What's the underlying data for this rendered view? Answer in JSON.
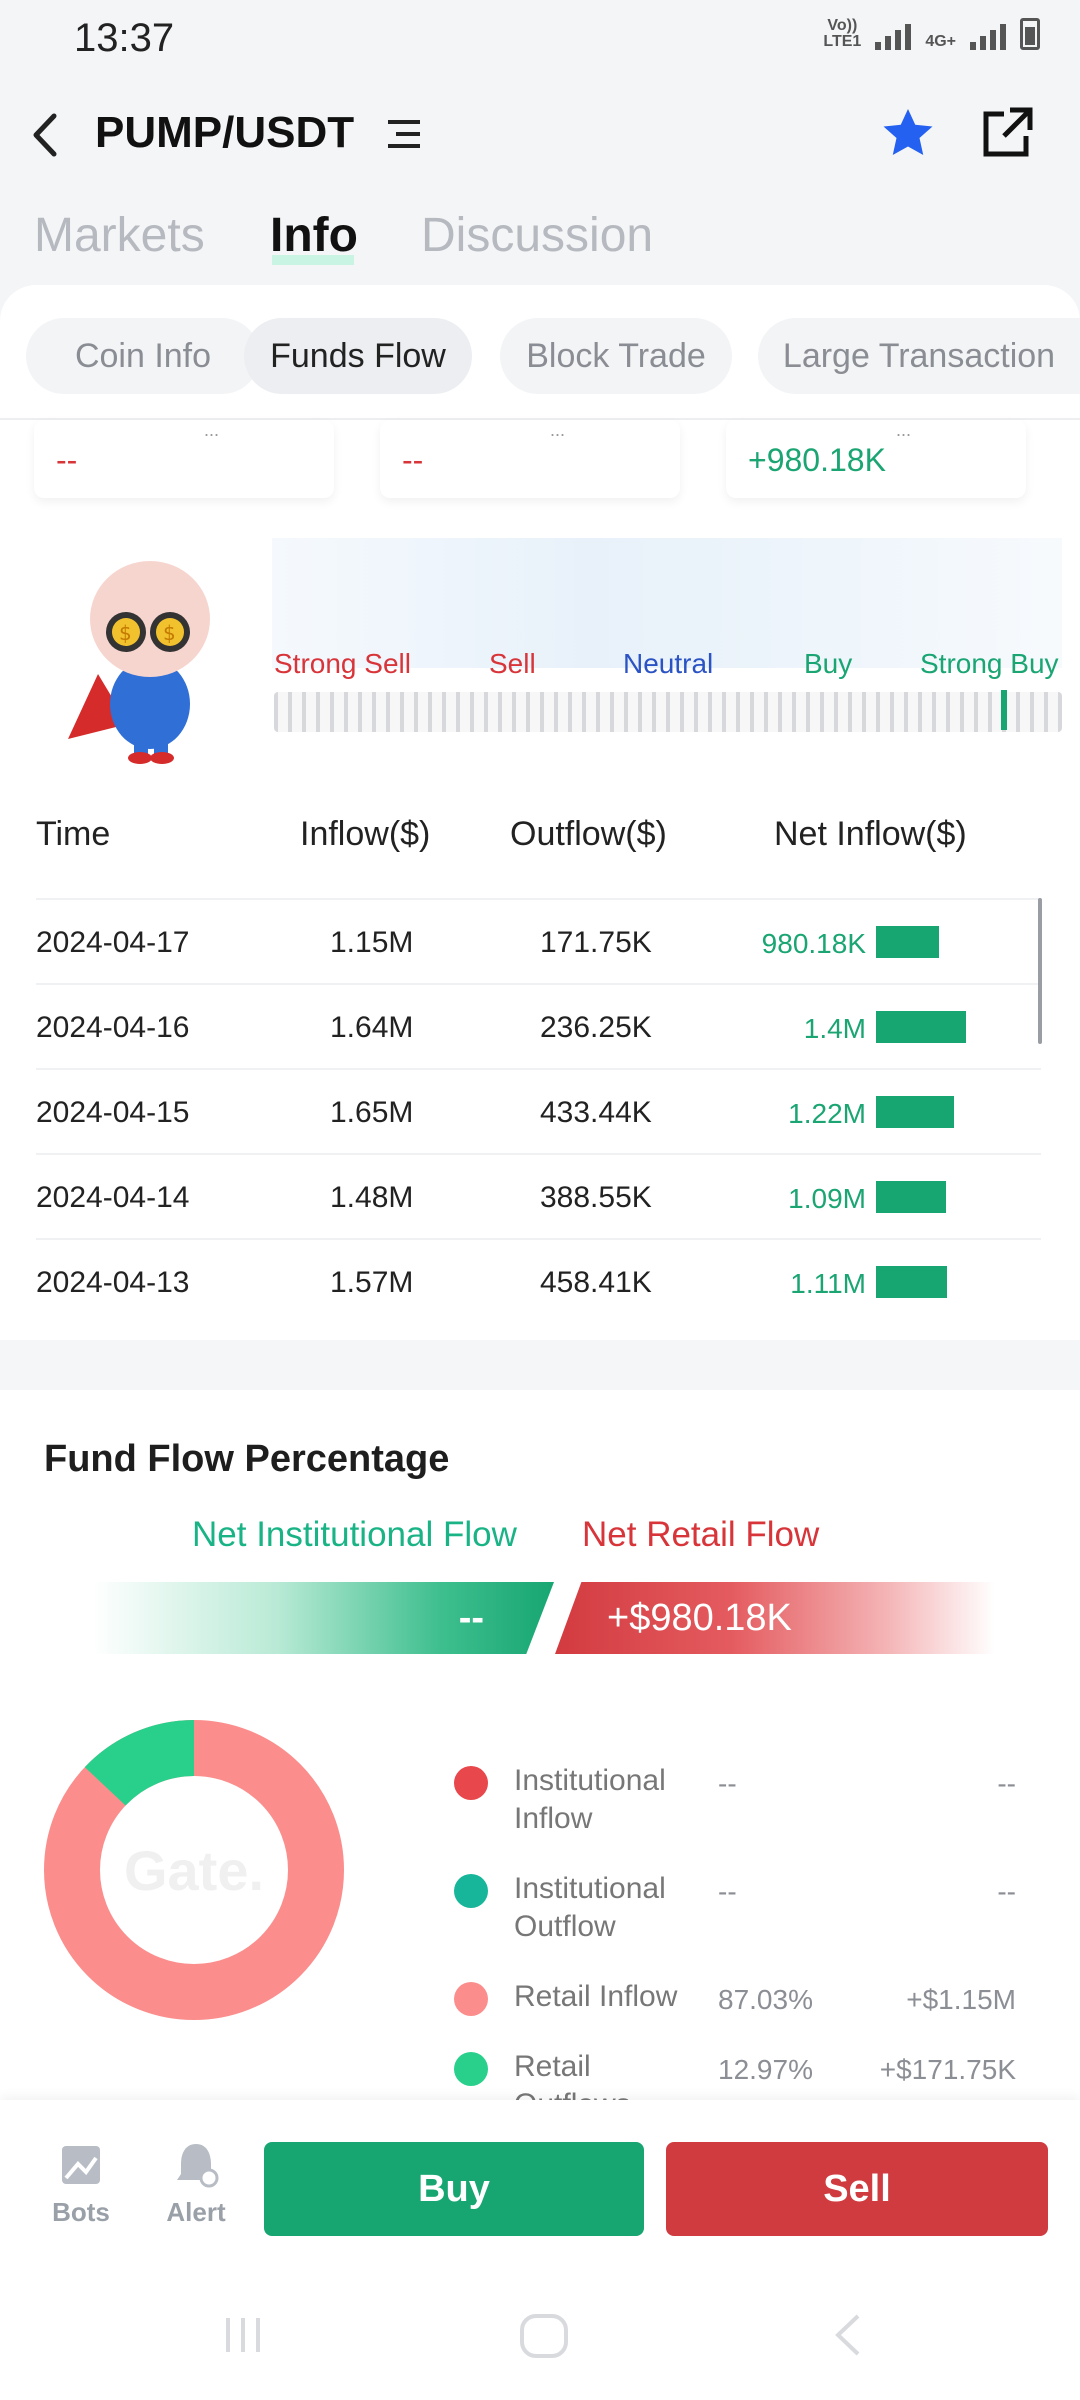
{
  "status_bar": {
    "time": "13:37",
    "net1": "Vo)) LTE1",
    "net2": "4G+"
  },
  "header": {
    "pair": "PUMP/USDT"
  },
  "tabs": [
    "Markets",
    "Info",
    "Discussion"
  ],
  "sub_tabs": [
    "Coin Info",
    "Funds Flow",
    "Block Trade",
    "Large Transaction"
  ],
  "summary_cards": [
    "--",
    "--",
    "+980.18K"
  ],
  "sentiment": {
    "labels": [
      "Strong Sell",
      "Sell",
      "Neutral",
      "Buy",
      "Strong Buy"
    ],
    "level": 0.93
  },
  "table": {
    "headers": [
      "Time",
      "Inflow($)",
      "Outflow($)",
      "Net Inflow($)"
    ],
    "rows": [
      {
        "time": "2024-04-17",
        "inflow": "1.15M",
        "outflow": "171.75K",
        "net": "980.18K",
        "bar": 0.7
      },
      {
        "time": "2024-04-16",
        "inflow": "1.64M",
        "outflow": "236.25K",
        "net": "1.4M",
        "bar": 1.0
      },
      {
        "time": "2024-04-15",
        "inflow": "1.65M",
        "outflow": "433.44K",
        "net": "1.22M",
        "bar": 0.87
      },
      {
        "time": "2024-04-14",
        "inflow": "1.48M",
        "outflow": "388.55K",
        "net": "1.09M",
        "bar": 0.78
      },
      {
        "time": "2024-04-13",
        "inflow": "1.57M",
        "outflow": "458.41K",
        "net": "1.11M",
        "bar": 0.79
      }
    ]
  },
  "fund_flow": {
    "title": "Fund Flow Percentage",
    "institutional_label": "Net Institutional Flow",
    "retail_label": "Net Retail Flow",
    "institutional_value": "--",
    "retail_value": "+$980.18K",
    "watermark": "Gate.",
    "legend": [
      {
        "name": "Institutional Inflow",
        "pct": "--",
        "amount": "--",
        "color": "#e8474b"
      },
      {
        "name": "Institutional Outflow",
        "pct": "--",
        "amount": "--",
        "color": "#17b69a"
      },
      {
        "name": "Retail Inflow",
        "pct": "87.03%",
        "amount": "+$1.15M",
        "color": "#fb8d8c"
      },
      {
        "name": "Retail Outflows",
        "pct": "12.97%",
        "amount": "+$171.75K",
        "color": "#28d08b"
      }
    ],
    "donut": {
      "retail_inflow": 87.03,
      "retail_outflow": 12.97
    }
  },
  "bottom_nav": {
    "bots": "Bots",
    "alert": "Alert",
    "buy": "Buy",
    "sell": "Sell"
  },
  "colors": {
    "green": "#17a672",
    "red": "#cf3b3f"
  }
}
